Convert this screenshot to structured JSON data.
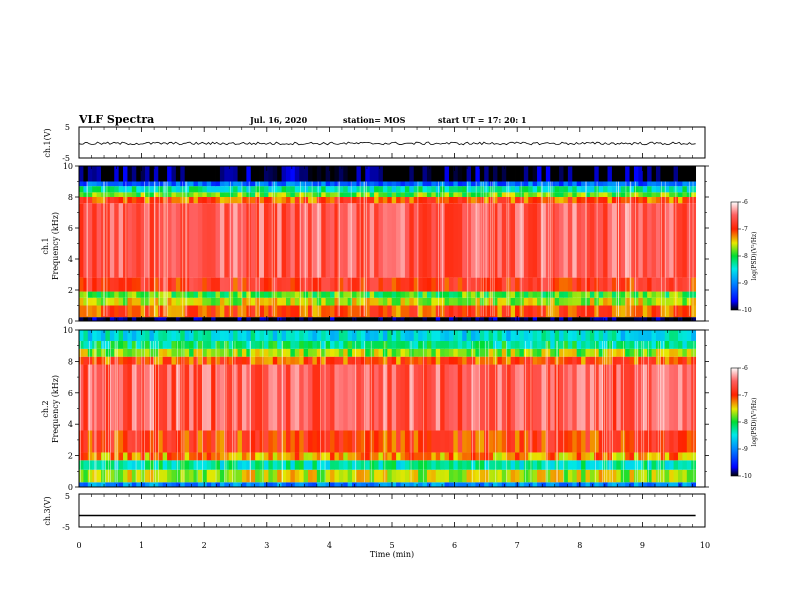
{
  "header": {
    "title": "VLF Spectra",
    "date": "Jul. 16, 2020",
    "station": "station= MOS",
    "start": "start UT =  17: 20: 1"
  },
  "chart_data": [
    {
      "type": "line",
      "panel": "ch1-waveform",
      "ylabel": "ch.1(V)",
      "ylim": [
        -5,
        5
      ],
      "yticks": [
        "5",
        "-5"
      ],
      "xlim": [
        0,
        10
      ],
      "series": [
        {
          "values_description_level": -0.3,
          "x": [
            0,
            9.85
          ],
          "y": [
            -0.3,
            -0.3
          ]
        }
      ]
    },
    {
      "type": "heatmap",
      "panel": "ch1-spectrogram",
      "ylabel": "ch.1 Frequency (kHz)",
      "ylim": [
        0,
        10
      ],
      "yticks": [
        "0",
        "2",
        "4",
        "6",
        "8",
        "10"
      ],
      "xlim": [
        0,
        10
      ],
      "data_end_min": 9.85,
      "bands": [
        {
          "f0": 0.0,
          "f1": 0.25,
          "level": -10.0
        },
        {
          "f0": 0.25,
          "f1": 1.0,
          "level": -7.1
        },
        {
          "f0": 1.0,
          "f1": 1.5,
          "level": -7.6
        },
        {
          "f0": 1.5,
          "f1": 1.9,
          "level": -7.9
        },
        {
          "f0": 1.9,
          "f1": 2.8,
          "level": -6.9
        },
        {
          "f0": 2.8,
          "f1": 7.6,
          "level": -6.55
        },
        {
          "f0": 7.6,
          "f1": 8.0,
          "level": -7.1
        },
        {
          "f0": 8.0,
          "f1": 8.3,
          "level": -7.8
        },
        {
          "f0": 8.3,
          "f1": 8.7,
          "level": -8.3
        },
        {
          "f0": 8.7,
          "f1": 9.0,
          "level": -9.2
        },
        {
          "f0": 9.0,
          "f1": 10.0,
          "level": -10.0
        }
      ],
      "colorbar": {
        "label": "log(PSD)(V²/Hz)",
        "range": [
          -10,
          -6
        ],
        "ticks": [
          "-6",
          "-7",
          "-8",
          "-9",
          "-10"
        ]
      }
    },
    {
      "type": "heatmap",
      "panel": "ch2-spectrogram",
      "ylabel": "ch.2 Frequency (kHz)",
      "ylim": [
        0,
        10
      ],
      "yticks": [
        "0",
        "2",
        "4",
        "6",
        "8",
        "10"
      ],
      "xlim": [
        0,
        10
      ],
      "data_end_min": 9.85,
      "bands": [
        {
          "f0": 0.0,
          "f1": 0.3,
          "level": -9.0
        },
        {
          "f0": 0.3,
          "f1": 1.1,
          "level": -7.6
        },
        {
          "f0": 1.1,
          "f1": 1.7,
          "level": -8.3
        },
        {
          "f0": 1.7,
          "f1": 2.2,
          "level": -7.3
        },
        {
          "f0": 2.2,
          "f1": 3.6,
          "level": -7.0
        },
        {
          "f0": 3.6,
          "f1": 7.8,
          "level": -6.6
        },
        {
          "f0": 7.8,
          "f1": 8.3,
          "level": -7.1
        },
        {
          "f0": 8.3,
          "f1": 8.8,
          "level": -7.7
        },
        {
          "f0": 8.8,
          "f1": 9.3,
          "level": -8.2
        },
        {
          "f0": 9.3,
          "f1": 10.0,
          "level": -8.5
        }
      ],
      "colorbar": {
        "label": "log(PSD)(V²/Hz)",
        "range": [
          -10,
          -6
        ],
        "ticks": [
          "-6",
          "-7",
          "-8",
          "-9",
          "-10"
        ]
      }
    },
    {
      "type": "line",
      "panel": "ch3-waveform",
      "ylabel": "ch.3(V)",
      "ylim": [
        -5,
        5
      ],
      "yticks": [
        "5",
        "-5"
      ],
      "xlim": [
        0,
        10
      ],
      "series": [
        {
          "x": [
            0,
            9.85
          ],
          "y": [
            -1.5,
            -1.5
          ]
        }
      ]
    }
  ],
  "xaxis": {
    "label": "Time (min)",
    "ticks": [
      "0",
      "1",
      "2",
      "3",
      "4",
      "5",
      "6",
      "7",
      "8",
      "9",
      "10"
    ]
  }
}
